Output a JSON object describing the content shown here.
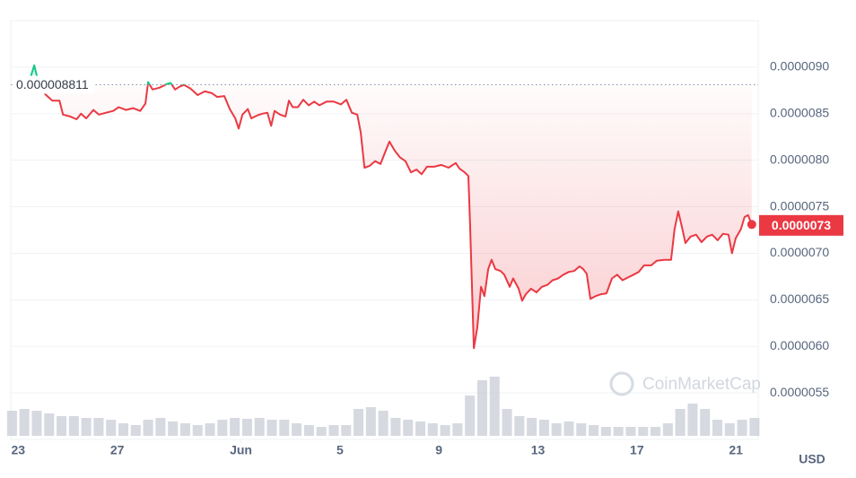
{
  "chart_data": {
    "type": "line",
    "series": [
      {
        "color": "#ea3943",
        "up_color": "#16c784",
        "x": [
          0.51,
          0.65,
          0.76,
          1.09,
          1.38,
          1.67,
          1.81,
          2.1,
          2.36,
          2.54,
          2.75,
          3.04,
          3.26,
          3.55,
          3.84,
          4.06,
          4.35,
          4.64,
          4.93,
          5.14,
          5.25,
          5.43,
          5.72,
          6.01,
          6.16,
          6.34,
          6.52,
          6.7,
          6.96,
          7.25,
          7.54,
          7.83,
          8.04,
          8.33,
          8.55,
          8.77,
          8.91,
          9.06,
          9.28,
          9.42,
          9.64,
          9.86,
          10.07,
          10.22,
          10.36,
          10.58,
          10.8,
          10.94,
          11.09,
          11.3,
          11.52,
          11.74,
          11.96,
          12.17,
          12.46,
          12.75,
          13.04,
          13.26,
          13.48,
          13.7,
          13.84,
          13.99,
          14.2,
          14.42,
          14.64,
          14.86,
          15.0,
          15.22,
          15.43,
          15.65,
          15.87,
          16.09,
          16.3,
          16.52,
          16.81,
          17.1,
          17.39,
          17.68,
          17.83,
          18.04,
          18.19,
          18.26,
          18.41,
          18.55,
          18.7,
          18.84,
          18.99,
          19.13,
          19.28,
          19.49,
          19.64,
          19.86,
          20.0,
          20.22,
          20.36,
          20.51,
          20.72,
          20.94,
          21.16,
          21.38,
          21.59,
          21.81,
          22.03,
          22.25,
          22.46,
          22.68,
          22.83,
          22.97,
          23.12,
          23.33,
          23.55,
          23.77,
          23.99,
          24.2,
          24.42,
          24.64,
          24.86,
          25.07,
          25.29,
          25.58,
          25.8,
          26.09,
          26.38,
          26.52,
          26.67,
          26.81,
          26.96,
          27.17,
          27.39,
          27.61,
          27.83,
          28.04,
          28.26,
          28.48,
          28.7,
          28.84,
          28.99,
          29.2,
          29.35,
          29.49,
          29.64
        ],
        "values": [
          8.9e-06,
          9.02e-06,
          8.9e-06,
          8.71e-06,
          8.64e-06,
          8.64e-06,
          8.49e-06,
          8.47e-06,
          8.44e-06,
          8.5e-06,
          8.45e-06,
          8.54e-06,
          8.49e-06,
          8.51e-06,
          8.53e-06,
          8.57e-06,
          8.54e-06,
          8.56e-06,
          8.53e-06,
          8.61e-06,
          8.84e-06,
          8.76e-06,
          8.78e-06,
          8.82e-06,
          8.83e-06,
          8.76e-06,
          8.79e-06,
          8.81e-06,
          8.77e-06,
          8.7e-06,
          8.74e-06,
          8.72e-06,
          8.68e-06,
          8.69e-06,
          8.55e-06,
          8.45e-06,
          8.34e-06,
          8.49e-06,
          8.55e-06,
          8.45e-06,
          8.48e-06,
          8.5e-06,
          8.51e-06,
          8.37e-06,
          8.53e-06,
          8.49e-06,
          8.47e-06,
          8.64e-06,
          8.57e-06,
          8.57e-06,
          8.65e-06,
          8.59e-06,
          8.63e-06,
          8.59e-06,
          8.63e-06,
          8.63e-06,
          8.6e-06,
          8.65e-06,
          8.51e-06,
          8.49e-06,
          8.3e-06,
          7.92e-06,
          7.94e-06,
          7.99e-06,
          7.96e-06,
          8.11e-06,
          8.2e-06,
          8.1e-06,
          8.03e-06,
          7.99e-06,
          7.87e-06,
          7.9e-06,
          7.85e-06,
          7.93e-06,
          7.93e-06,
          7.95e-06,
          7.92e-06,
          7.97e-06,
          7.91e-06,
          7.87e-06,
          7.83e-06,
          7.31e-06,
          5.98e-06,
          6.2e-06,
          6.64e-06,
          6.54e-06,
          6.83e-06,
          6.93e-06,
          6.83e-06,
          6.81e-06,
          6.77e-06,
          6.64e-06,
          6.73e-06,
          6.62e-06,
          6.49e-06,
          6.56e-06,
          6.62e-06,
          6.58e-06,
          6.64e-06,
          6.66e-06,
          6.71e-06,
          6.73e-06,
          6.77e-06,
          6.8e-06,
          6.81e-06,
          6.86e-06,
          6.83e-06,
          6.78e-06,
          6.51e-06,
          6.54e-06,
          6.56e-06,
          6.57e-06,
          6.73e-06,
          6.77e-06,
          6.71e-06,
          6.74e-06,
          6.77e-06,
          6.8e-06,
          6.87e-06,
          6.87e-06,
          6.92e-06,
          6.93e-06,
          6.93e-06,
          7.26e-06,
          7.45e-06,
          7.29e-06,
          7.11e-06,
          7.18e-06,
          7.2e-06,
          7.12e-06,
          7.18e-06,
          7.2e-06,
          7.14e-06,
          7.21e-06,
          7.2e-06,
          7e-06,
          7.16e-06,
          7.26e-06,
          7.39e-06,
          7.41e-06,
          7.31e-06
        ]
      }
    ],
    "volume": {
      "color": "#c4c9d3",
      "x": [
        -0.25,
        0.25,
        0.75,
        1.25,
        1.75,
        2.25,
        2.75,
        3.25,
        3.75,
        4.25,
        4.75,
        5.25,
        5.75,
        6.25,
        6.75,
        7.25,
        7.75,
        8.25,
        8.75,
        9.25,
        9.75,
        10.25,
        10.75,
        11.25,
        11.75,
        12.25,
        12.75,
        13.25,
        13.75,
        14.25,
        14.75,
        15.25,
        15.75,
        16.25,
        16.75,
        17.25,
        17.75,
        18.25,
        18.75,
        19.25,
        19.75,
        20.25,
        20.75,
        21.25,
        21.75,
        22.25,
        22.75,
        23.25,
        23.75,
        24.25,
        24.75,
        25.25,
        25.75,
        26.25,
        26.75,
        27.25,
        27.75,
        28.25,
        28.75,
        29.25,
        29.75
      ],
      "values": [
        28,
        30,
        28,
        25,
        22,
        22,
        20,
        20,
        18,
        14,
        12,
        18,
        20,
        16,
        14,
        12,
        14,
        18,
        20,
        19,
        20,
        18,
        18,
        14,
        12,
        10,
        12,
        12,
        30,
        32,
        28,
        20,
        18,
        16,
        14,
        12,
        14,
        45,
        62,
        66,
        30,
        22,
        20,
        18,
        14,
        16,
        14,
        12,
        10,
        10,
        10,
        10,
        10,
        14,
        30,
        36,
        30,
        18,
        14,
        18,
        20
      ]
    },
    "reference_price": 8.811e-06,
    "current_price": 7.3e-06,
    "currency": "USD",
    "watermark": "CoinMarketCap",
    "xlim": [
      -0.3,
      29.9
    ],
    "xticks": [
      {
        "value": 0,
        "label": "23"
      },
      {
        "value": 4,
        "label": "27"
      },
      {
        "value": 9,
        "label": "Jun"
      },
      {
        "value": 13,
        "label": "5"
      },
      {
        "value": 17,
        "label": "9"
      },
      {
        "value": 21,
        "label": "13"
      },
      {
        "value": 25,
        "label": "17"
      },
      {
        "value": 29,
        "label": "21"
      }
    ],
    "ylim": [
      5e-06,
      9.5e-06
    ],
    "yticks": [
      {
        "value": 5.5e-06,
        "label": "0.0000055"
      },
      {
        "value": 6e-06,
        "label": "0.0000060"
      },
      {
        "value": 6.5e-06,
        "label": "0.0000065"
      },
      {
        "value": 7e-06,
        "label": "0.0000070"
      },
      {
        "value": 7.5e-06,
        "label": "0.0000075"
      },
      {
        "value": 8e-06,
        "label": "0.0000080"
      },
      {
        "value": 8.5e-06,
        "label": "0.0000085"
      },
      {
        "value": 9e-06,
        "label": "0.0000090"
      }
    ],
    "grid": true
  }
}
